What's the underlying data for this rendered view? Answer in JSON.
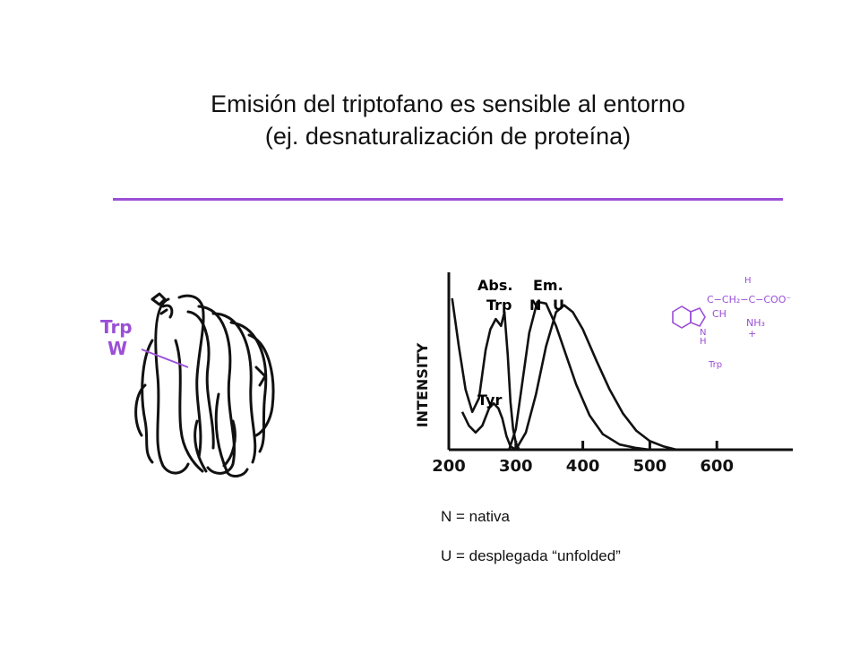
{
  "slide": {
    "title_line1": "Emisión del triptofano es sensible al entorno",
    "title_line2": "(ej. desnaturalización  de proteína)",
    "rule_color": "#9b4fd6",
    "legend_n": "N = nativa",
    "legend_u": "U = desplegada “unfolded”"
  },
  "protein_figure": {
    "label_line1": "Trp",
    "label_line2": "W",
    "label_color": "#9b4fd6"
  },
  "molecule": {
    "color": "#9b4fd6",
    "labels": {
      "chain": "C−CH₂−C−COO⁻",
      "h_top": "H",
      "ring_ch": "CH",
      "nh3": "NH₃",
      "plus": "+",
      "n": "N",
      "h": "H",
      "name": "Trp"
    }
  },
  "chart_data": {
    "type": "line",
    "xlabel": "",
    "ylabel": "INTENSITY",
    "xlim": [
      200,
      700
    ],
    "x_ticks": [
      200,
      300,
      400,
      500,
      600
    ],
    "annotations": [
      "Abs.",
      "Trp",
      "Em.",
      "N",
      "U",
      "Tyr"
    ],
    "series": [
      {
        "name": "Abs. Trp",
        "x": [
          205,
          215,
          225,
          235,
          245,
          255,
          262,
          270,
          278,
          283,
          288,
          292,
          296,
          300,
          305
        ],
        "y": [
          88,
          60,
          35,
          22,
          30,
          58,
          70,
          76,
          72,
          80,
          55,
          28,
          12,
          4,
          0
        ]
      },
      {
        "name": "Tyr",
        "x": [
          220,
          230,
          240,
          250,
          260,
          267,
          274,
          280,
          286,
          292,
          300
        ],
        "y": [
          22,
          14,
          10,
          14,
          24,
          27,
          24,
          18,
          8,
          2,
          0
        ]
      },
      {
        "name": "Em. N",
        "x": [
          290,
          300,
          310,
          320,
          332,
          345,
          360,
          375,
          390,
          410,
          430,
          455,
          480,
          500
        ],
        "y": [
          0,
          12,
          40,
          68,
          86,
          85,
          72,
          55,
          38,
          20,
          9,
          3,
          1,
          0
        ]
      },
      {
        "name": "Em. U",
        "x": [
          300,
          315,
          330,
          345,
          360,
          372,
          385,
          400,
          420,
          440,
          460,
          480,
          500,
          520,
          540
        ],
        "y": [
          0,
          10,
          32,
          60,
          80,
          84,
          80,
          70,
          52,
          35,
          21,
          11,
          5,
          2,
          0
        ]
      }
    ]
  }
}
